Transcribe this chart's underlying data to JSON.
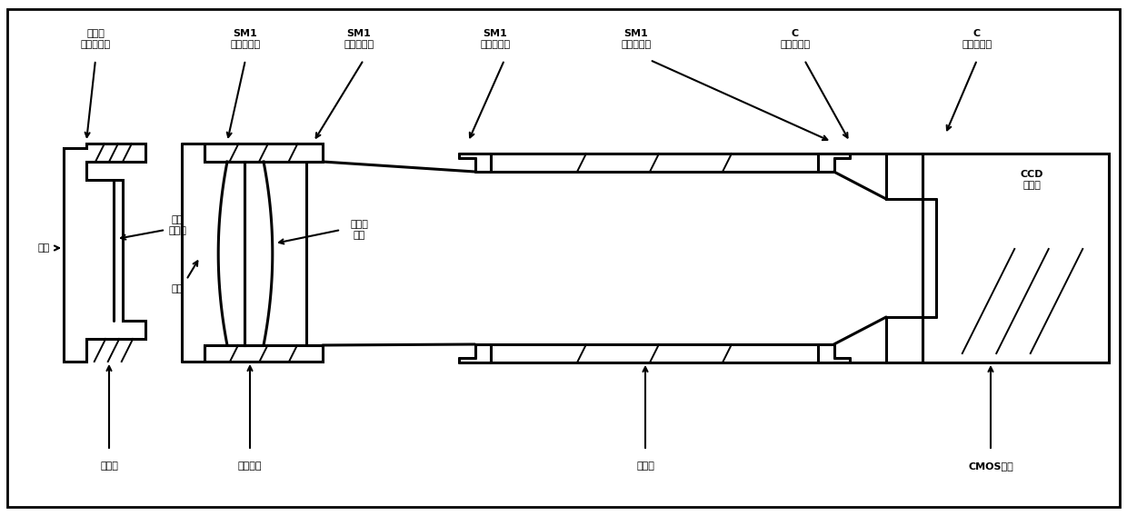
{
  "fig_width": 12.4,
  "fig_height": 5.68,
  "lc": "black",
  "lw_main": 2.2,
  "lw_thin": 1.4,
  "labels": {
    "zidingyi": "自定义\n外螺纹接口",
    "sm1_wai1": "SM1\n外螺纹接口",
    "sm1_nei1": "SM1\n内螺纹接口",
    "sm1_wai2": "SM1\n外螺纹接口",
    "sm1_nei2": "SM1\n内螺纹接口",
    "c_wai": "C\n外螺纹接口",
    "c_nei": "C\n内螺纹接口",
    "daitung": "带通\n滤光片",
    "kajuan1": "卡环",
    "kajuan2": "卡环",
    "xiaosecha": "消色差\n透镜",
    "zhuanjianjian": "转接件",
    "shensuo": "伸缩套筒",
    "zhujutong": "主光筒",
    "cmos": "CMOS相机",
    "ccd": "CCD\n光敏面"
  },
  "fonts": {
    "label_size": 8.0,
    "label_weight": "bold"
  }
}
